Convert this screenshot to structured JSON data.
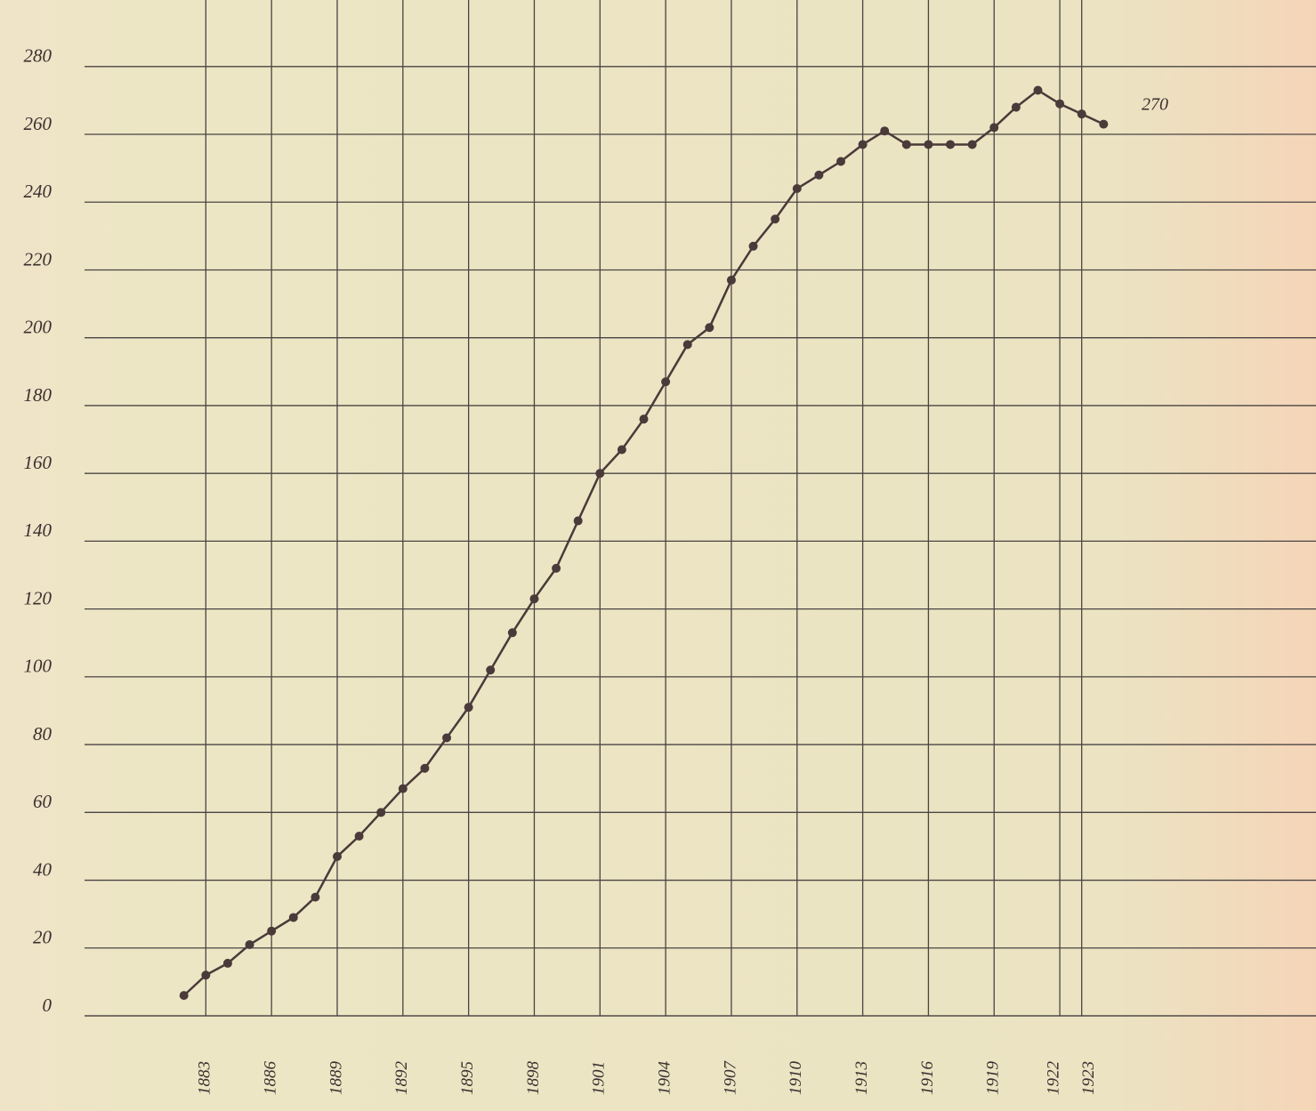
{
  "chart_data": {
    "type": "line",
    "annotation": "270",
    "x": [
      1882,
      1883,
      1884,
      1885,
      1886,
      1887,
      1888,
      1889,
      1890,
      1891,
      1892,
      1893,
      1894,
      1895,
      1896,
      1897,
      1898,
      1899,
      1900,
      1901,
      1902,
      1903,
      1904,
      1905,
      1906,
      1907,
      1908,
      1909,
      1910,
      1911,
      1912,
      1913,
      1914,
      1915,
      1916,
      1917,
      1918,
      1919,
      1920,
      1921,
      1922,
      1923,
      1924
    ],
    "series": [
      {
        "color": "#4a3a3a",
        "values": [
          6,
          12,
          15.5,
          21,
          25,
          29,
          35,
          47,
          53,
          60,
          67,
          73,
          82,
          91,
          102,
          113,
          123,
          132,
          146,
          160,
          167,
          176,
          187,
          198,
          203,
          217,
          227,
          235,
          244,
          248,
          252,
          257,
          261,
          257,
          257,
          257,
          257,
          262,
          268,
          273,
          269,
          266,
          263
        ]
      }
    ],
    "xlim": [
      1873.6,
      1933.7
    ],
    "xticks": [
      1883,
      1886,
      1889,
      1892,
      1895,
      1898,
      1901,
      1904,
      1907,
      1910,
      1913,
      1916,
      1919,
      1922,
      1923
    ],
    "ylim": [
      0,
      297
    ],
    "yticks": [
      0,
      20,
      40,
      60,
      80,
      100,
      120,
      140,
      160,
      180,
      200,
      220,
      240,
      260,
      280
    ],
    "grid": true
  }
}
